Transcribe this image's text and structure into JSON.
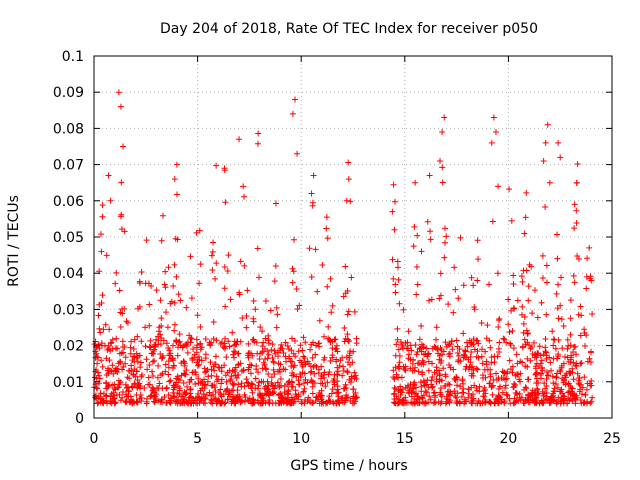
{
  "chart_data": {
    "type": "scatter",
    "title": "Day 204 of 2018, Rate Of TEC Index for receiver p050",
    "xlabel": "GPS time / hours",
    "ylabel": "ROTI / TECUs",
    "xlim": [
      0,
      25
    ],
    "ylim": [
      0,
      0.1
    ],
    "xticks": [
      0,
      5,
      10,
      15,
      20,
      25
    ],
    "xtick_labels": [
      "0",
      "5",
      "10",
      "15",
      "20",
      "25"
    ],
    "yticks": [
      0,
      0.01,
      0.02,
      0.03,
      0.04,
      0.05,
      0.06,
      0.07,
      0.08,
      0.09,
      0.1
    ],
    "ytick_labels": [
      "0",
      "0.01",
      "0.02",
      "0.03",
      "0.04",
      "0.05",
      "0.06",
      "0.07",
      "0.08",
      "0.09",
      "0.1"
    ],
    "grid": true,
    "marker": "+",
    "color": "#ff0000",
    "data_gap_hours": [
      12.7,
      14.4
    ],
    "sample_points": [
      {
        "x": 1.2,
        "y": 0.09
      },
      {
        "x": 1.3,
        "y": 0.086
      },
      {
        "x": 1.4,
        "y": 0.075
      },
      {
        "x": 0.7,
        "y": 0.067
      },
      {
        "x": 0.8,
        "y": 0.06
      },
      {
        "x": 4.0,
        "y": 0.07
      },
      {
        "x": 3.9,
        "y": 0.066
      },
      {
        "x": 6.3,
        "y": 0.069
      },
      {
        "x": 7.0,
        "y": 0.077
      },
      {
        "x": 7.2,
        "y": 0.064
      },
      {
        "x": 9.7,
        "y": 0.088
      },
      {
        "x": 9.6,
        "y": 0.084
      },
      {
        "x": 9.8,
        "y": 0.073
      },
      {
        "x": 10.6,
        "y": 0.067
      },
      {
        "x": 10.5,
        "y": 0.062
      },
      {
        "x": 12.3,
        "y": 0.066
      },
      {
        "x": 12.2,
        "y": 0.06
      },
      {
        "x": 14.4,
        "y": 0.057
      },
      {
        "x": 14.5,
        "y": 0.052
      },
      {
        "x": 15.5,
        "y": 0.065
      },
      {
        "x": 16.2,
        "y": 0.067
      },
      {
        "x": 16.9,
        "y": 0.083
      },
      {
        "x": 16.8,
        "y": 0.079
      },
      {
        "x": 16.7,
        "y": 0.071
      },
      {
        "x": 18.5,
        "y": 0.038
      },
      {
        "x": 19.3,
        "y": 0.083
      },
      {
        "x": 19.4,
        "y": 0.079
      },
      {
        "x": 19.2,
        "y": 0.076
      },
      {
        "x": 19.5,
        "y": 0.064
      },
      {
        "x": 21.9,
        "y": 0.081
      },
      {
        "x": 21.8,
        "y": 0.076
      },
      {
        "x": 21.7,
        "y": 0.071
      },
      {
        "x": 22.4,
        "y": 0.076
      },
      {
        "x": 22.5,
        "y": 0.072
      },
      {
        "x": 22.0,
        "y": 0.065
      },
      {
        "x": 23.3,
        "y": 0.065
      },
      {
        "x": 23.2,
        "y": 0.059
      },
      {
        "x": 23.9,
        "y": 0.047
      },
      {
        "x": 24.0,
        "y": 0.038
      }
    ]
  }
}
